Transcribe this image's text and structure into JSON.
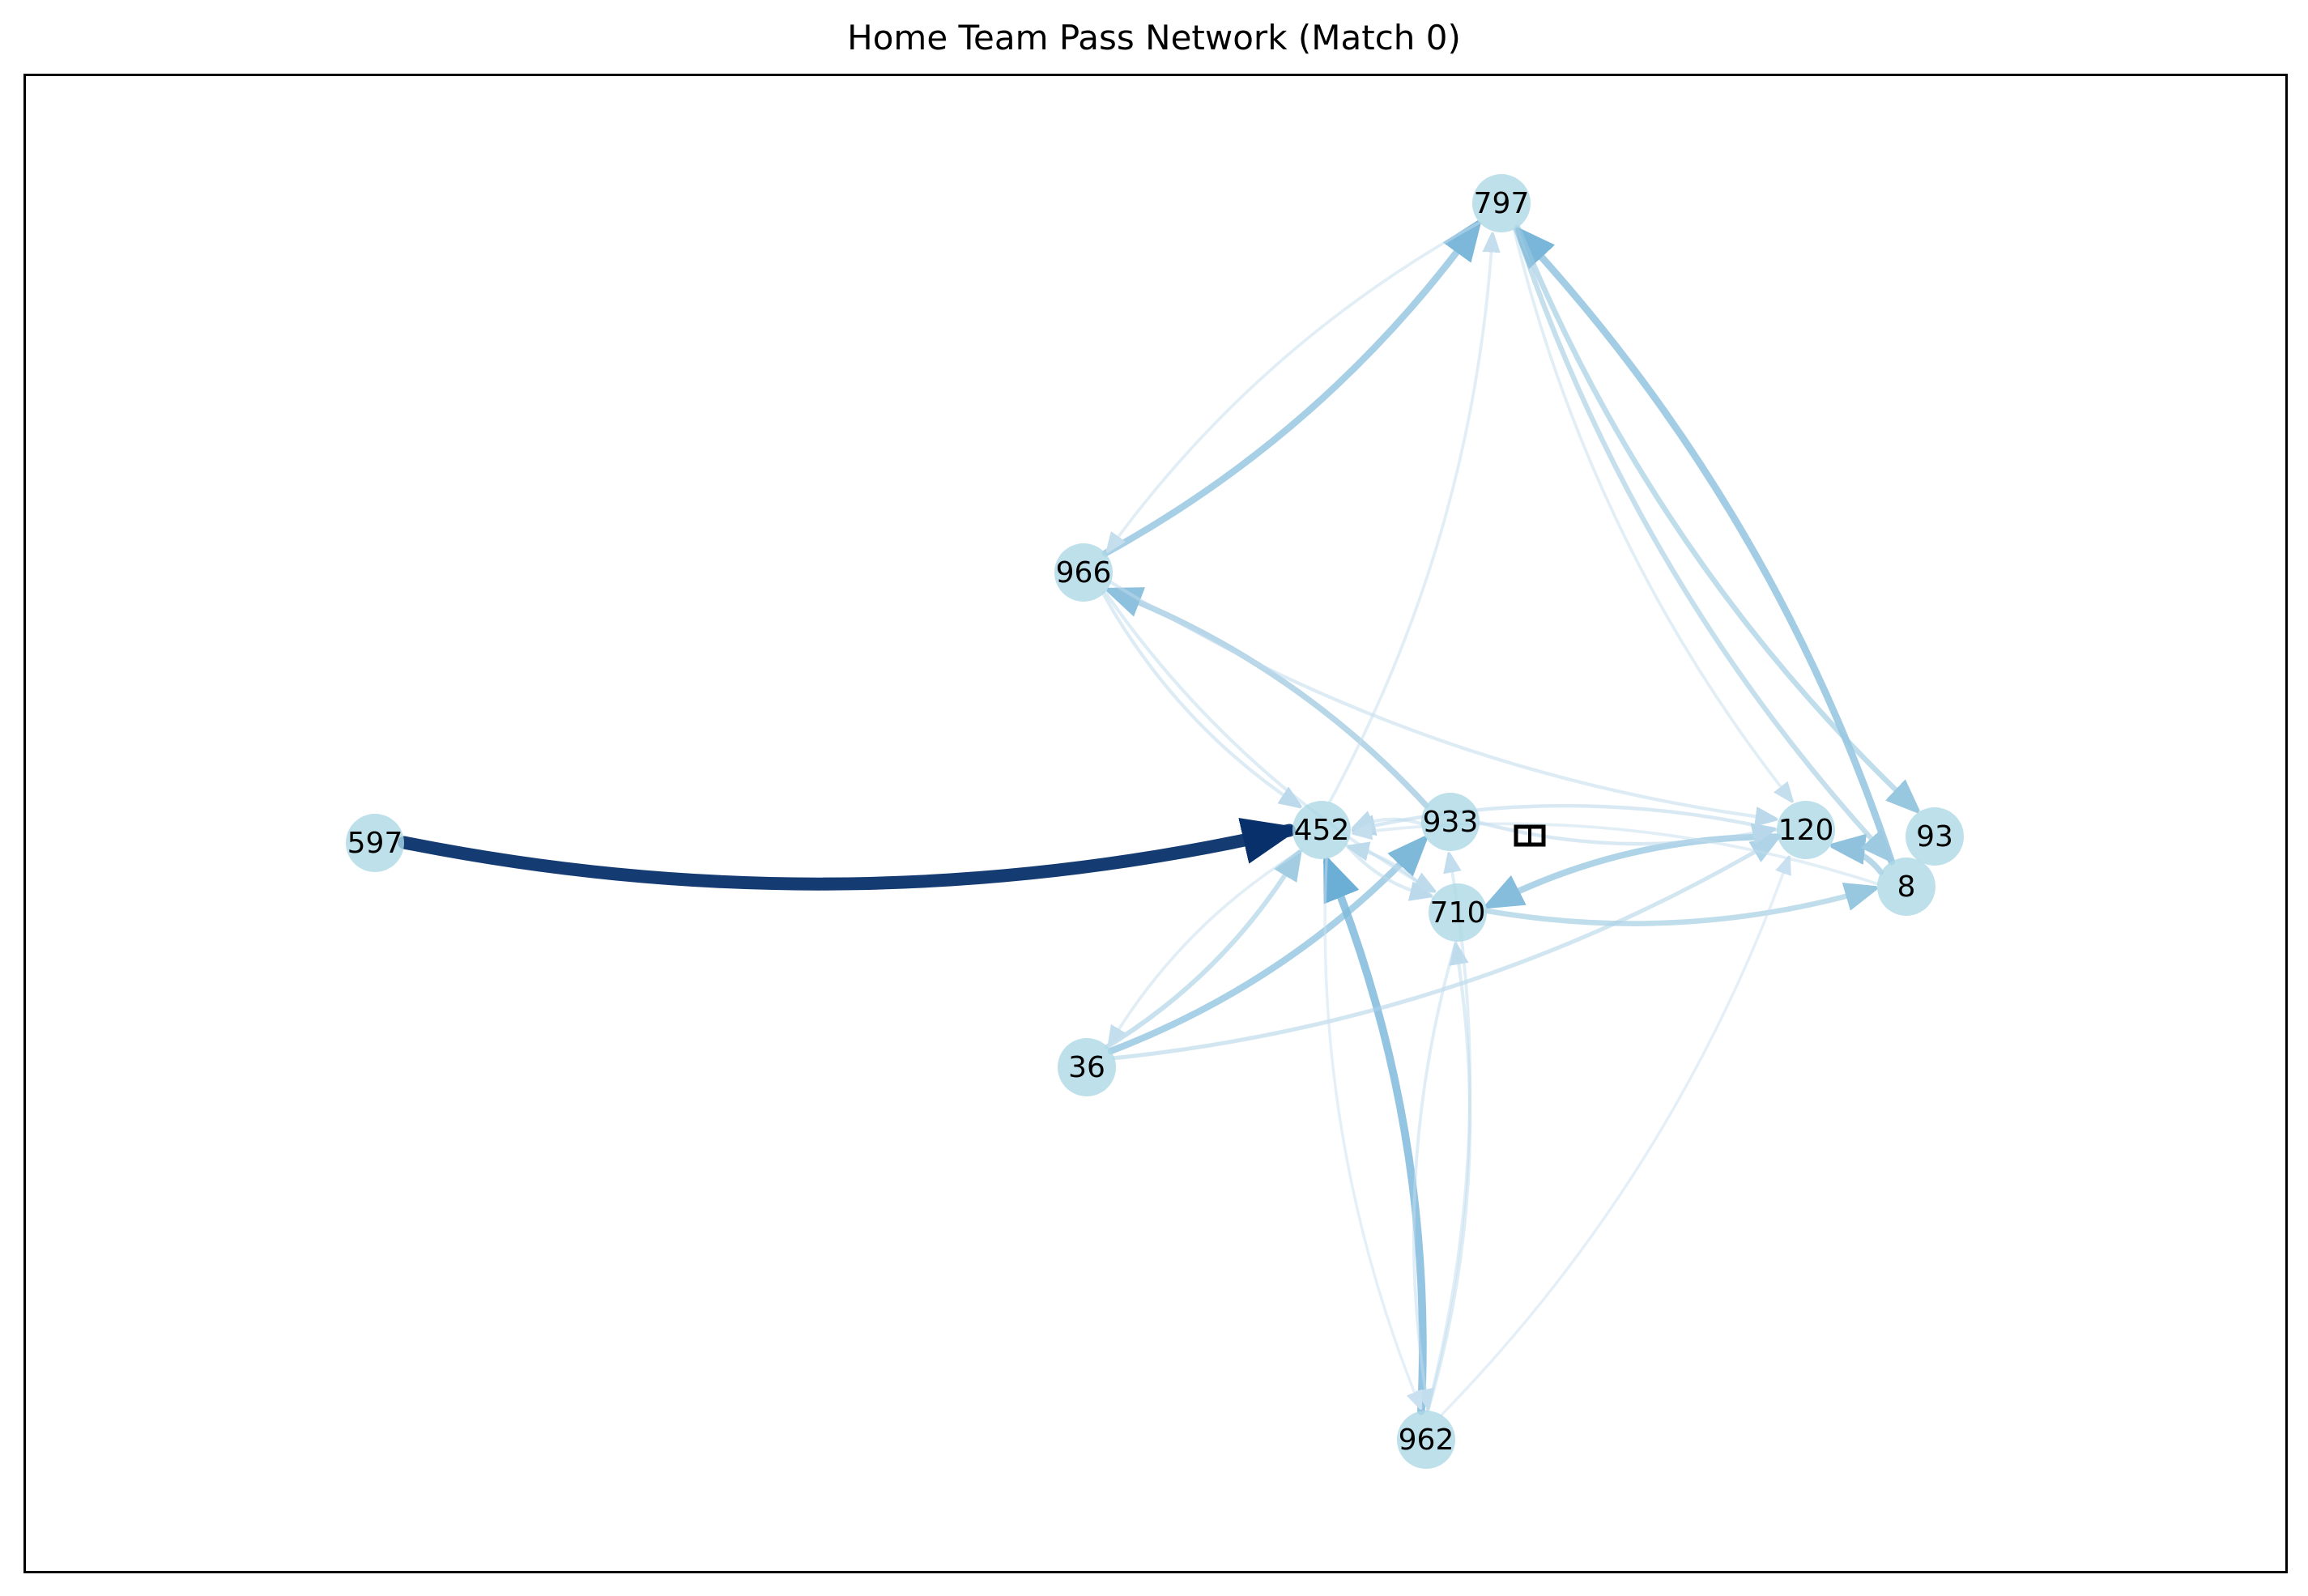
{
  "figure": {
    "title": "Home Team Pass Network (Match 0)"
  },
  "colors": {
    "node_fill": "#add8e6",
    "edge_scale": [
      "#deebf7",
      "#9ecae1",
      "#6baed6",
      "#08306b"
    ],
    "frame": "#000000",
    "label": "#000000"
  },
  "network": {
    "nodes": [
      {
        "id": "597",
        "label": "597"
      },
      {
        "id": "452",
        "label": "452"
      },
      {
        "id": "933",
        "label": "933"
      },
      {
        "id": "710",
        "label": "710"
      },
      {
        "id": "966",
        "label": "966"
      },
      {
        "id": "797",
        "label": "797"
      },
      {
        "id": "36",
        "label": "36"
      },
      {
        "id": "962",
        "label": "962"
      },
      {
        "id": "120",
        "label": "120"
      },
      {
        "id": "93",
        "label": "93"
      },
      {
        "id": "8",
        "label": "8"
      }
    ],
    "edges": [
      {
        "source": "597",
        "target": "452",
        "weight": 1.0
      },
      {
        "source": "962",
        "target": "452",
        "weight": 0.55
      },
      {
        "source": "8",
        "target": "797",
        "weight": 0.48
      },
      {
        "source": "966",
        "target": "797",
        "weight": 0.46
      },
      {
        "source": "36",
        "target": "933",
        "weight": 0.45
      },
      {
        "source": "120",
        "target": "710",
        "weight": 0.42
      },
      {
        "source": "933",
        "target": "966",
        "weight": 0.38
      },
      {
        "source": "8",
        "target": "120",
        "weight": 0.37
      },
      {
        "source": "797",
        "target": "93",
        "weight": 0.33
      },
      {
        "source": "710",
        "target": "8",
        "weight": 0.33
      },
      {
        "source": "797",
        "target": "8",
        "weight": 0.3
      },
      {
        "source": "36",
        "target": "452",
        "weight": 0.28
      },
      {
        "source": "36",
        "target": "120",
        "weight": 0.22
      },
      {
        "source": "120",
        "target": "452",
        "weight": 0.18
      },
      {
        "source": "933",
        "target": "120",
        "weight": 0.18
      },
      {
        "source": "966",
        "target": "120",
        "weight": 0.16
      },
      {
        "source": "966",
        "target": "452",
        "weight": 0.16
      },
      {
        "source": "966",
        "target": "710",
        "weight": 0.15
      },
      {
        "source": "452",
        "target": "710",
        "weight": 0.16
      },
      {
        "source": "710",
        "target": "452",
        "weight": 0.15
      },
      {
        "source": "933",
        "target": "452",
        "weight": 0.15
      },
      {
        "source": "962",
        "target": "710",
        "weight": 0.15
      },
      {
        "source": "962",
        "target": "933",
        "weight": 0.13
      },
      {
        "source": "710",
        "target": "962",
        "weight": 0.13
      },
      {
        "source": "452",
        "target": "36",
        "weight": 0.12
      },
      {
        "source": "797",
        "target": "966",
        "weight": 0.12
      },
      {
        "source": "452",
        "target": "797",
        "weight": 0.12
      },
      {
        "source": "797",
        "target": "120",
        "weight": 0.12
      },
      {
        "source": "962",
        "target": "120",
        "weight": 0.1
      },
      {
        "source": "452",
        "target": "962",
        "weight": 0.1
      },
      {
        "source": "8",
        "target": "452",
        "weight": 0.12
      }
    ]
  }
}
